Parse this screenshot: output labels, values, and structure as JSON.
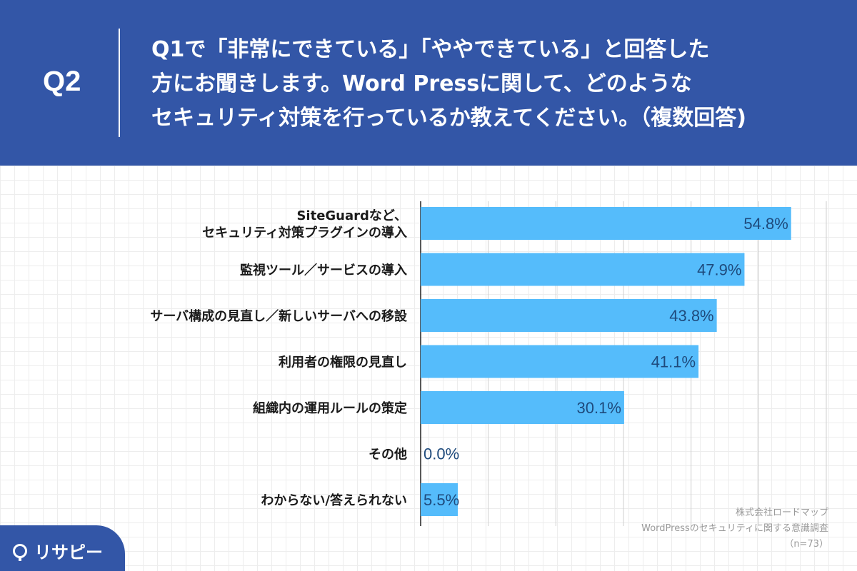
{
  "header": {
    "q_label": "Q2",
    "question_lines": [
      "Q1で「非常にできている」「ややできている」と回答した",
      "方にお聞きします。Word Pressに関して、どのような",
      "セキュリティ対策を行っているか教えてください。（複数回答)"
    ]
  },
  "chart_data": {
    "type": "bar",
    "orientation": "horizontal",
    "categories": [
      [
        "SiteGuardなど、",
        "セキュリティ対策プラグインの導入"
      ],
      [
        "監視ツール／サービスの導入"
      ],
      [
        "サーバ構成の見直し／新しいサーバへの移設"
      ],
      [
        "利用者の権限の見直し"
      ],
      [
        "組織内の運用ルールの策定"
      ],
      [
        "その他"
      ],
      [
        "わからない/答えられない"
      ]
    ],
    "values": [
      54.8,
      47.9,
      43.8,
      41.1,
      30.1,
      0.0,
      5.5
    ],
    "value_labels": [
      "54.8%",
      "47.9%",
      "43.8%",
      "41.1%",
      "30.1%",
      "0.0%",
      "5.5%"
    ],
    "xlim": [
      0,
      60
    ],
    "grid": true,
    "bar_color": "#55bcfb"
  },
  "source": {
    "company": "株式会社ロードマップ",
    "survey": "WordPressのセキュリティに関する意識調査",
    "n": "（n=73）"
  },
  "logo": {
    "text": "リサピー"
  }
}
